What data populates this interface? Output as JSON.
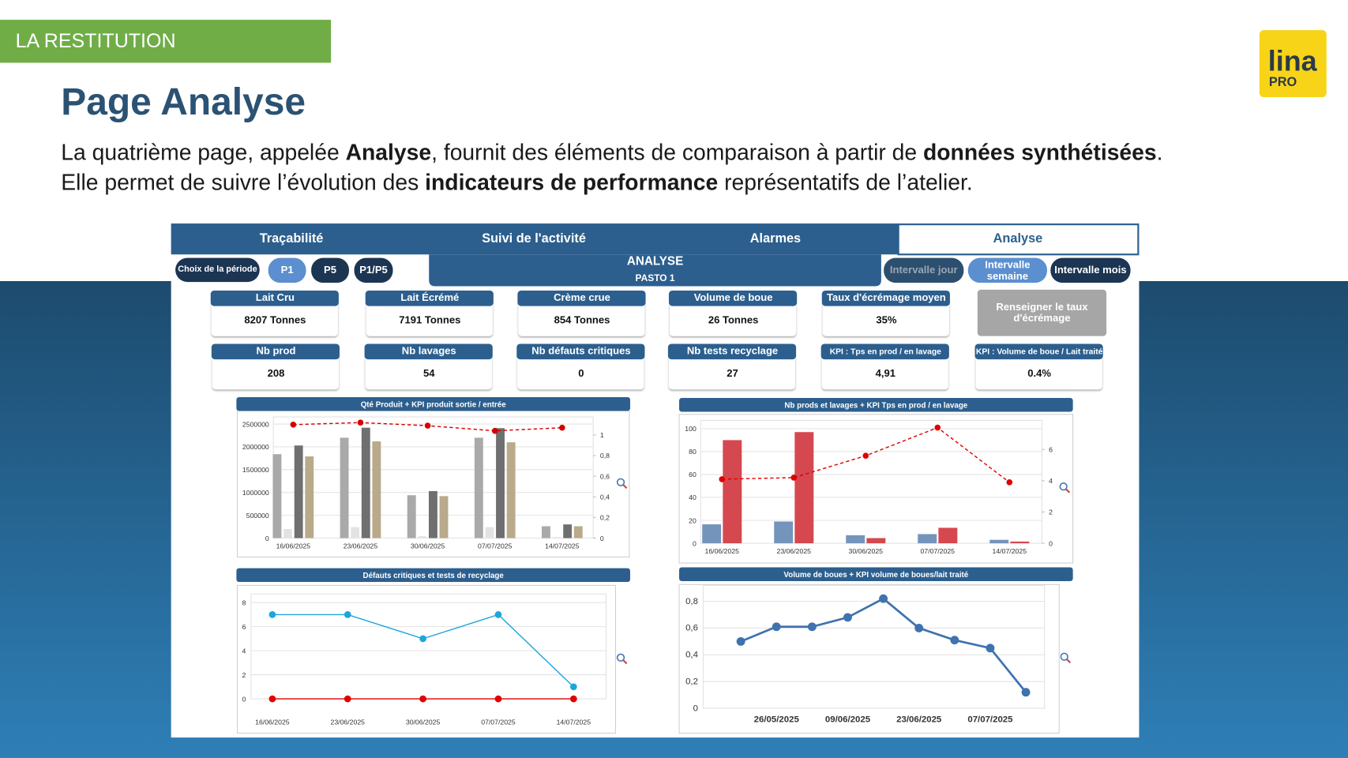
{
  "header": {
    "section": "LA RESTITUTION",
    "title": "Page Analyse",
    "paragraph": [
      [
        "La quatrième page, appelée ",
        "Analyse",
        ", fournit des éléments de comparaison à partir de ",
        "données synthétisées",
        "."
      ],
      [
        "Elle permet de suivre l’évolution des ",
        "indicateurs de performance",
        " représentatifs de l’atelier."
      ]
    ],
    "logo": [
      "lina",
      "PRO"
    ]
  },
  "dashboard": {
    "tabs": [
      "Traçabilité",
      "Suivi de l'activité",
      "Alarmes",
      "Analyse"
    ],
    "active_tab": 3,
    "period_label": "Choix de la période",
    "periods": [
      "P1",
      "P5",
      "P1/P5"
    ],
    "active_period": 0,
    "heading": "ANALYSE",
    "subheading": "PASTO 1",
    "intervals": [
      "Intervalle jour",
      "Intervalle semaine",
      "Intervalle mois"
    ],
    "active_interval": 1,
    "kpis": [
      {
        "label": "Lait Cru",
        "value": "8207 Tonnes"
      },
      {
        "label": "Lait Écrémé",
        "value": "7191 Tonnes"
      },
      {
        "label": "Crème crue",
        "value": "854 Tonnes"
      },
      {
        "label": "Volume de boue",
        "value": "26 Tonnes"
      },
      {
        "label": "Taux d'écrémage moyen",
        "value": "35%"
      },
      {
        "label": "Nb prod",
        "value": "208"
      },
      {
        "label": "Nb lavages",
        "value": "54"
      },
      {
        "label": "Nb défauts critiques",
        "value": "0"
      },
      {
        "label": "Nb tests recyclage",
        "value": "27"
      },
      {
        "label": "KPI : Tps en prod / en lavage",
        "value": "4,91"
      },
      {
        "label": "KPI : Volume de boue / Lait traité",
        "value": "0.4%"
      }
    ],
    "action": "Renseigner le taux d'écrémage"
  },
  "chart_data": [
    {
      "type": "bar",
      "title": "Qté Produit + KPI produit sortie / entrée",
      "categories": [
        "16/06/2025",
        "23/06/2025",
        "30/06/2025",
        "07/07/2025",
        "14/07/2025"
      ],
      "series": [
        {
          "color": "#a9a9a9",
          "values": [
            1840000,
            2200000,
            940000,
            2200000,
            260000
          ]
        },
        {
          "color": "#e3e3e3",
          "values": [
            200000,
            240000,
            40000,
            240000,
            20000
          ]
        },
        {
          "color": "#6f6f6f",
          "values": [
            2030000,
            2420000,
            1030000,
            2410000,
            300000
          ]
        },
        {
          "color": "#b8aa8a",
          "values": [
            1790000,
            2120000,
            920000,
            2100000,
            260000
          ]
        },
        {
          "color": "#d40000",
          "type": "line",
          "dashed": true,
          "axis": "y2",
          "values": [
            1.1,
            1.12,
            1.09,
            1.04,
            1.07
          ]
        }
      ],
      "ylim": [
        0,
        2600000
      ],
      "yticks": [
        0,
        500000,
        1000000,
        1500000,
        2000000,
        2500000
      ],
      "y2lim": [
        0,
        1.15
      ],
      "y2ticks": [
        0,
        {
          "value": 0.2,
          "label": "0,2"
        },
        {
          "value": 0.4,
          "label": "0,4"
        },
        {
          "value": 0.6,
          "label": "0,6"
        },
        {
          "value": 0.8,
          "label": "0,8"
        },
        1
      ],
      "grid": true
    },
    {
      "type": "bar",
      "title": "Nb prods et lavages + KPI Tps en prod / en lavage",
      "categories": [
        "16/06/2025",
        "23/06/2025",
        "30/06/2025",
        "07/07/2025",
        "14/07/2025"
      ],
      "series": [
        {
          "color": "#7594bc",
          "values": [
            16.5,
            19,
            7,
            8,
            3
          ]
        },
        {
          "color": "#d5484f",
          "values": [
            90,
            97,
            4.5,
            13.5,
            1.5
          ]
        },
        {
          "color": "#e00000",
          "type": "line",
          "dashed": true,
          "axis": "y2",
          "values": [
            4.1,
            4.2,
            5.6,
            7.4,
            3.9
          ]
        }
      ],
      "ylim": [
        0,
        105
      ],
      "yticks": [
        0,
        20,
        40,
        60,
        80,
        100
      ],
      "y2lim": [
        0,
        7.7
      ],
      "y2ticks": [
        0,
        2,
        4,
        6
      ],
      "grid": true
    },
    {
      "type": "line",
      "title": "Défauts critiques et tests de recyclage",
      "categories": [
        "16/06/2025",
        "23/06/2025",
        "30/06/2025",
        "07/07/2025",
        "14/07/2025"
      ],
      "series": [
        {
          "color": "#1ea6db",
          "values": [
            7,
            7,
            5,
            7,
            1
          ]
        },
        {
          "color": "#e00000",
          "values": [
            0,
            0,
            0,
            0,
            0
          ]
        }
      ],
      "ylim": [
        0,
        8.5
      ],
      "yticks": [
        0,
        2,
        4,
        6,
        8
      ],
      "grid": true
    },
    {
      "type": "line",
      "title": "Volume de boues + KPI volume de boues/lait traité",
      "categories": [
        null,
        "26/05/2025",
        null,
        "09/06/2025",
        null,
        "23/06/2025",
        null,
        "07/07/2025",
        null
      ],
      "series": [
        {
          "color": "#3f72ae",
          "values": [
            0.5,
            0.61,
            0.61,
            0.68,
            0.82,
            0.6,
            0.51,
            0.45,
            0.12
          ]
        }
      ],
      "ylim": [
        0,
        0.9
      ],
      "yticks": [
        0,
        {
          "value": 0.2,
          "label": "0,2"
        },
        {
          "value": 0.4,
          "label": "0,4"
        },
        {
          "value": 0.6,
          "label": "0,6"
        },
        {
          "value": 0.8,
          "label": "0,8"
        }
      ],
      "grid": true
    }
  ]
}
